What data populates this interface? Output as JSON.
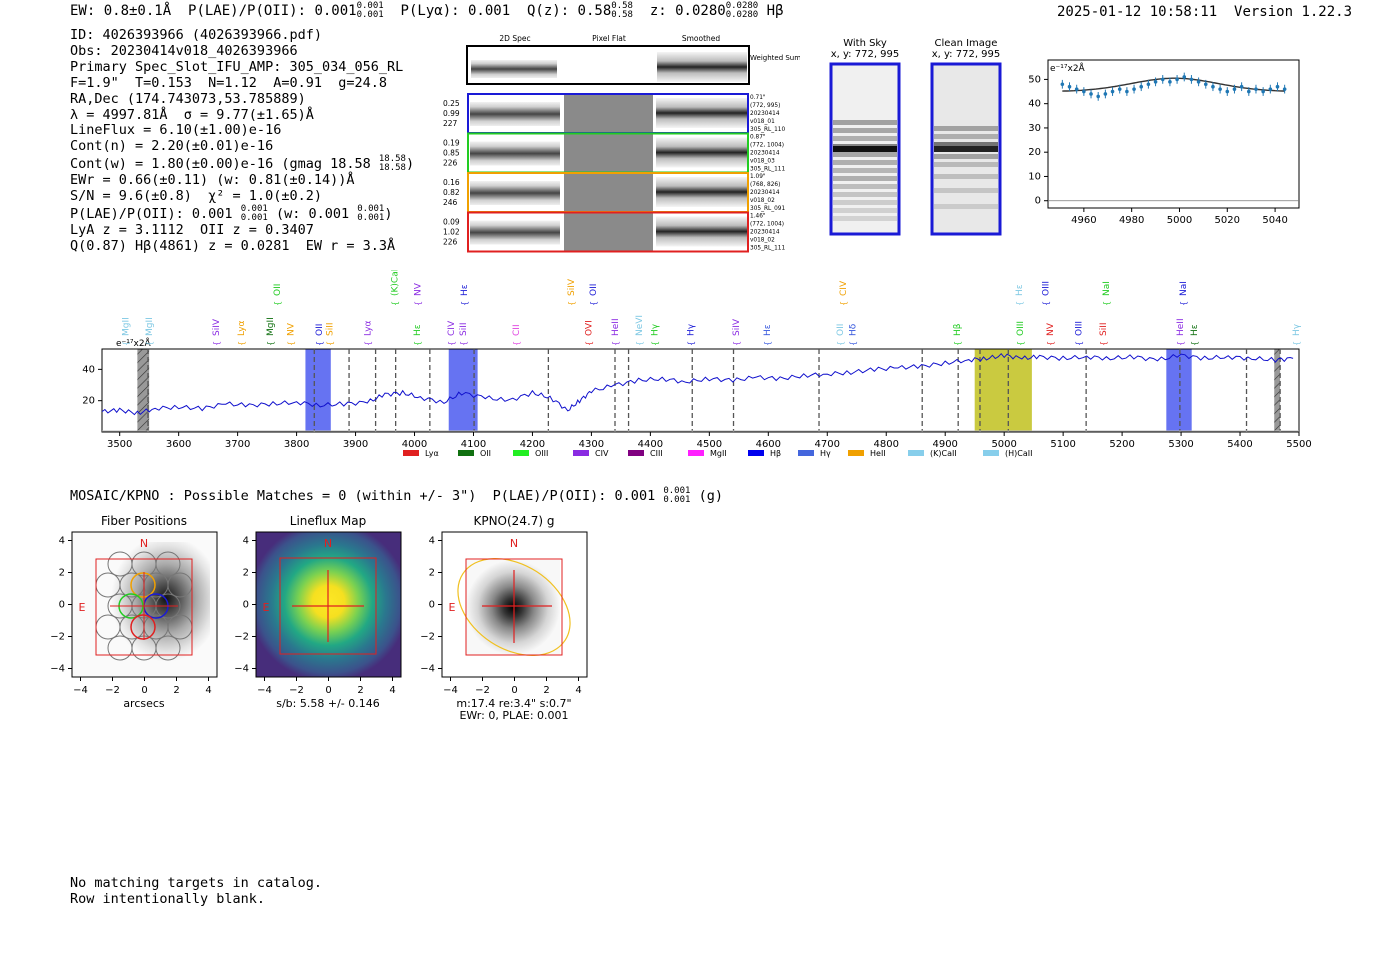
{
  "header": {
    "ew": "EW: 0.8±0.1Å",
    "plae": "P(LAE)/P(OII): 0.001",
    "plae_hi": "0.001",
    "plae_lo": "0.001",
    "plya": "P(Lyα): 0.001",
    "qz": "Q(z): 0.58",
    "qz_hi": "0.58",
    "qz_lo": "0.58",
    "z": "z: 0.0280",
    "z_hi": "0.0280",
    "z_lo": "0.0280",
    "line": "Hβ",
    "timestamp": "2025-01-12 10:58:11",
    "version": "Version 1.22.3"
  },
  "info": {
    "id": "ID: 4026393966 (4026393966.pdf)",
    "obs": "Obs: 20230414v018_4026393966",
    "primary": "Primary Spec_Slot_IFU_AMP: 305_034_056_RL",
    "params": "F=1.9\"  T=0.153  N=1.12  A=0.91  g=24.8",
    "radec": "RA,Dec (174.743073,53.785889)",
    "lambda": "λ = 4997.81Å  σ = 9.77(±1.65)Å",
    "lineflux": "LineFlux = 6.10(±1.00)e-16",
    "contn": "Cont(n) = 2.20(±0.01)e-16",
    "contw": "Cont(w) = 1.80(±0.00)e-16 (gmag 18.58",
    "gmag_hi": "18.58",
    "gmag_lo": "18.58",
    "ewr": "EWr = 0.66(±0.11) (w: 0.81(±0.14))Å",
    "sn": "S/N = 9.6(±0.8)  χ² = 1.0(±0.2)",
    "plae_a": "P(LAE)/P(OII): 0.001",
    "plae_a_hi": "0.001",
    "plae_a_lo": "0.001",
    "plae_w": "(w: 0.001",
    "plae_w_hi": "0.001",
    "plae_w_lo": "0.001",
    "lya": "LyA z = 3.1112  OII z = 0.3407",
    "q": "Q(0.87) Hβ(4861) z = 0.0281  EW r = 3.3Å"
  },
  "cutouts": {
    "col_2d": "2D Spec",
    "col_flat": "Pixel Flat",
    "col_smooth": "Smoothed",
    "weighted": "Weighted Sum",
    "fibers": [
      {
        "w": "0.25",
        "x": "0.99",
        "n": "227",
        "color": "#1a1ad6",
        "info": [
          "0.71\"",
          "(772, 995)",
          "20230414",
          "v018_01",
          "305_RL_110"
        ]
      },
      {
        "w": "0.19",
        "x": "0.85",
        "n": "226",
        "color": "#22cc22",
        "info": [
          "0.87\"",
          "(772, 1004)",
          "20230414",
          "v018_03",
          "305_RL_111"
        ]
      },
      {
        "w": "0.16",
        "x": "0.82",
        "n": "246",
        "color": "#f0a000",
        "info": [
          "1.09\"",
          "(768, 826)",
          "20230414",
          "v018_02",
          "305_RL_091"
        ]
      },
      {
        "w": "0.09",
        "x": "1.02",
        "n": "226",
        "color": "#e02020",
        "info": [
          "1.46\"",
          "(772, 1004)",
          "20230414",
          "v018_02",
          "305_RL_111"
        ]
      }
    ],
    "with_sky": "With Sky",
    "with_sky_xy": "x, y: 772, 995",
    "clean": "Clean Image",
    "clean_xy": "x, y: 772, 995"
  },
  "zoom_chart": {
    "type": "scatter",
    "unit_label": "e⁻¹⁷x2Å",
    "xlim": [
      4945,
      5050
    ],
    "ylim": [
      -3,
      58
    ],
    "xticks": [
      4960,
      4980,
      5000,
      5020,
      5040
    ],
    "yticks": [
      0,
      10,
      20,
      30,
      40,
      50
    ],
    "x": [
      4951,
      4954,
      4957,
      4960,
      4963,
      4966,
      4969,
      4972,
      4975,
      4978,
      4981,
      4984,
      4987,
      4990,
      4993,
      4996,
      4999,
      5002,
      5005,
      5008,
      5011,
      5014,
      5017,
      5020,
      5023,
      5026,
      5029,
      5032,
      5035,
      5038,
      5041,
      5044
    ],
    "y": [
      48,
      47,
      46,
      45,
      44,
      43,
      44,
      45,
      46,
      45,
      46,
      47,
      48,
      49,
      50,
      49,
      50,
      51,
      50,
      49,
      48,
      47,
      46,
      45,
      46,
      47,
      45,
      46,
      45,
      46,
      47,
      46
    ],
    "err": 1.8,
    "fit_color": "#333333",
    "point_color": "#1f77b4"
  },
  "spectrum": {
    "type": "line",
    "xlim": [
      3470,
      5500
    ],
    "ylim": [
      0,
      53
    ],
    "xticks": [
      3500,
      3600,
      3700,
      3800,
      3900,
      4000,
      4100,
      4200,
      4300,
      4400,
      4500,
      4600,
      4700,
      4800,
      4900,
      5000,
      5100,
      5200,
      5300,
      5400,
      5500
    ],
    "yticks": [
      20,
      40
    ],
    "unit_label": "e⁻¹⁷x2Å",
    "color": "#1010cc",
    "points": [
      [
        3470,
        13
      ],
      [
        3500,
        14
      ],
      [
        3530,
        12
      ],
      [
        3560,
        15
      ],
      [
        3600,
        16
      ],
      [
        3640,
        15
      ],
      [
        3680,
        18
      ],
      [
        3720,
        17
      ],
      [
        3760,
        18
      ],
      [
        3800,
        19
      ],
      [
        3840,
        17
      ],
      [
        3880,
        18
      ],
      [
        3920,
        19
      ],
      [
        3950,
        24
      ],
      [
        3980,
        25
      ],
      [
        4010,
        22
      ],
      [
        4050,
        19
      ],
      [
        4080,
        25
      ],
      [
        4120,
        22
      ],
      [
        4160,
        20
      ],
      [
        4200,
        25
      ],
      [
        4230,
        22
      ],
      [
        4260,
        14
      ],
      [
        4280,
        20
      ],
      [
        4300,
        26
      ],
      [
        4340,
        30
      ],
      [
        4380,
        33
      ],
      [
        4420,
        34
      ],
      [
        4460,
        32
      ],
      [
        4500,
        34
      ],
      [
        4540,
        33
      ],
      [
        4580,
        35
      ],
      [
        4620,
        34
      ],
      [
        4660,
        36
      ],
      [
        4700,
        37
      ],
      [
        4740,
        38
      ],
      [
        4780,
        40
      ],
      [
        4820,
        41
      ],
      [
        4860,
        42
      ],
      [
        4900,
        44
      ],
      [
        4940,
        46
      ],
      [
        4970,
        47
      ],
      [
        5000,
        49
      ],
      [
        5030,
        47
      ],
      [
        5060,
        48
      ],
      [
        5100,
        47
      ],
      [
        5140,
        48
      ],
      [
        5180,
        47
      ],
      [
        5220,
        48
      ],
      [
        5260,
        46
      ],
      [
        5300,
        49
      ],
      [
        5340,
        47
      ],
      [
        5380,
        48
      ],
      [
        5420,
        47
      ],
      [
        5460,
        46
      ],
      [
        5490,
        47
      ]
    ],
    "dashed_lines": [
      3548,
      3830,
      3889,
      3934,
      3968,
      4026,
      4101,
      4227,
      4340,
      4363,
      4471,
      4541,
      4686,
      4861,
      4922,
      4959,
      5007,
      5139,
      5298,
      5411,
      5468
    ],
    "bands": [
      {
        "x0": 3815,
        "x1": 3858,
        "color": "#3344ee"
      },
      {
        "x0": 4058,
        "x1": 4107,
        "color": "#3344ee"
      },
      {
        "x0": 4950,
        "x1": 5047,
        "color": "#b8b800"
      },
      {
        "x0": 5275,
        "x1": 5318,
        "color": "#3344ee"
      }
    ],
    "hatched": [
      {
        "x0": 3530,
        "x1": 3550
      },
      {
        "x0": 5458,
        "x1": 5468
      }
    ],
    "labels_low": [
      {
        "t": "MgII",
        "x": 3510,
        "c": "#7ec8e3"
      },
      {
        "t": "MgII",
        "x": 3550,
        "c": "#7ec8e3"
      },
      {
        "t": "SiIV",
        "x": 3663,
        "c": "#8a2be2"
      },
      {
        "t": "Lyα",
        "x": 3706,
        "c": "#f0a000"
      },
      {
        "t": "MgII",
        "x": 3755,
        "c": "#107010"
      },
      {
        "t": "NV",
        "x": 3790,
        "c": "#f0a000"
      },
      {
        "t": "OII",
        "x": 3838,
        "c": "#1a1ad6"
      },
      {
        "t": "SiII",
        "x": 3856,
        "c": "#f0a000"
      },
      {
        "t": "Lyα",
        "x": 3920,
        "c": "#8a2be2"
      },
      {
        "t": "Hε",
        "x": 4004,
        "c": "#22cc22"
      },
      {
        "t": "CIV",
        "x": 4062,
        "c": "#8a2be2"
      },
      {
        "t": "SiII",
        "x": 4082,
        "c": "#8a2be2"
      },
      {
        "t": "CII",
        "x": 4172,
        "c": "#e040e0"
      },
      {
        "t": "OVI",
        "x": 4295,
        "c": "#e02020"
      },
      {
        "t": "HeII",
        "x": 4340,
        "c": "#8a2be2"
      },
      {
        "t": "NeVI",
        "x": 4381,
        "c": "#7ec8e3"
      },
      {
        "t": "Hγ",
        "x": 4407,
        "c": "#22cc22"
      },
      {
        "t": "Hγ",
        "x": 4468,
        "c": "#1a1ad6"
      },
      {
        "t": "SiIV",
        "x": 4545,
        "c": "#8a2be2"
      },
      {
        "t": "Hε",
        "x": 4598,
        "c": "#3355dd"
      },
      {
        "t": "OII",
        "x": 4722,
        "c": "#7ec8e3"
      },
      {
        "t": "Hδ",
        "x": 4743,
        "c": "#3355dd"
      },
      {
        "t": "Hβ",
        "x": 4920,
        "c": "#22cc22"
      },
      {
        "t": "OIII",
        "x": 5027,
        "c": "#22cc22"
      },
      {
        "t": "NV",
        "x": 5078,
        "c": "#e02020"
      },
      {
        "t": "OIII",
        "x": 5126,
        "c": "#1a1ad6"
      },
      {
        "t": "SiII",
        "x": 5168,
        "c": "#e02020"
      },
      {
        "t": "HeII",
        "x": 5298,
        "c": "#8a2be2"
      },
      {
        "t": "Hε",
        "x": 5322,
        "c": "#107010"
      },
      {
        "t": "Hγ",
        "x": 5495,
        "c": "#7ec8e3"
      }
    ],
    "labels_high": [
      {
        "t": "OII",
        "x": 3767,
        "c": "#22cc22"
      },
      {
        "t": "(K)CaII",
        "x": 3966,
        "c": "#22cc22"
      },
      {
        "t": "NV",
        "x": 4005,
        "c": "#8a2be2"
      },
      {
        "t": "Hε",
        "x": 4084,
        "c": "#1a1ad6"
      },
      {
        "t": "SiIV",
        "x": 4265,
        "c": "#f0a000"
      },
      {
        "t": "OII",
        "x": 4303,
        "c": "#1a1ad6"
      },
      {
        "t": "CIV",
        "x": 4727,
        "c": "#f0a000"
      },
      {
        "t": "Hε",
        "x": 5025,
        "c": "#7ec8e3"
      },
      {
        "t": "OIII",
        "x": 5070,
        "c": "#1a1ad6"
      },
      {
        "t": "NaI",
        "x": 5173,
        "c": "#22cc22"
      },
      {
        "t": "NaI",
        "x": 5303,
        "c": "#1a1ad6"
      }
    ],
    "legend": [
      {
        "t": "Lyα",
        "c": "#e02020"
      },
      {
        "t": "OII",
        "c": "#107010"
      },
      {
        "t": "OIII",
        "c": "#22ee22"
      },
      {
        "t": "CIV",
        "c": "#8a2be2"
      },
      {
        "t": "CIII",
        "c": "#800080"
      },
      {
        "t": "MgII",
        "c": "#ff20ff"
      },
      {
        "t": "Hβ",
        "c": "#0000ee"
      },
      {
        "t": "Hγ",
        "c": "#4466dd"
      },
      {
        "t": "HeII",
        "c": "#f0a000"
      },
      {
        "t": "(K)CaII",
        "c": "#87ceeb"
      },
      {
        "t": "(H)CaII",
        "c": "#87ceeb"
      }
    ]
  },
  "mosaic": {
    "line": "MOSAIC/KPNO : Possible Matches = 0 (within +/- 3\")  P(LAE)/P(OII): 0.001",
    "hi": "0.001",
    "lo": "0.001",
    "band": "(g)"
  },
  "panels": {
    "fiber_title": "Fiber Positions",
    "fiber_xlabel": "arcsecs",
    "lineflux_title": "Lineflux Map",
    "lineflux_xlabel": "s/b: 5.58 +/- 0.146",
    "kpno_title": "KPNO(24.7) g",
    "kpno_xlabel": "m:17.4  re:3.4\"  s:0.7\"",
    "kpno_xlabel2": "EWr: 0, PLAE: 0.001",
    "ticks": [
      -4,
      -2,
      0,
      2,
      4
    ],
    "north": "N",
    "east": "E"
  },
  "footer": {
    "line1": "No matching targets in catalog.",
    "line2": "Row intentionally blank."
  }
}
